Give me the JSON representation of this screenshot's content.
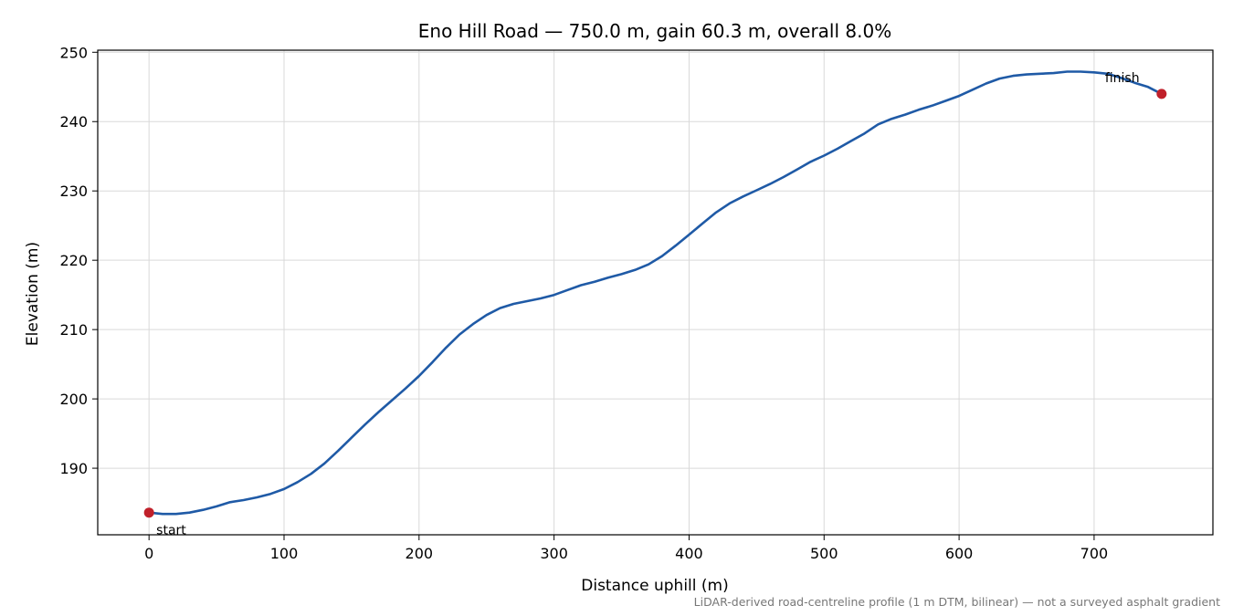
{
  "chart_data": {
    "type": "line",
    "title": "Eno Hill Road — 750.0 m, gain 60.3 m, overall 8.0%",
    "xlabel": "Distance uphill (m)",
    "ylabel": "Elevation (m)",
    "xlim": [
      -38,
      788
    ],
    "ylim": [
      180.4,
      250.3
    ],
    "xticks": [
      0,
      100,
      200,
      300,
      400,
      500,
      600,
      700
    ],
    "yticks": [
      190,
      200,
      210,
      220,
      230,
      240,
      250
    ],
    "grid": true,
    "footnote": "LiDAR-derived road-centreline profile (1 m DTM, bilinear) — not a surveyed asphalt gradient",
    "line_color": "#1f5aa6",
    "marker_color": "#c0202a",
    "series": [
      {
        "x": [
          0,
          10,
          20,
          30,
          40,
          50,
          60,
          70,
          80,
          90,
          100,
          110,
          120,
          130,
          140,
          150,
          160,
          170,
          180,
          190,
          200,
          210,
          220,
          230,
          240,
          250,
          260,
          270,
          280,
          290,
          300,
          310,
          320,
          330,
          340,
          350,
          360,
          370,
          380,
          390,
          400,
          410,
          420,
          430,
          440,
          450,
          460,
          470,
          480,
          490,
          500,
          510,
          520,
          530,
          540,
          550,
          560,
          570,
          580,
          590,
          600,
          610,
          620,
          630,
          640,
          650,
          660,
          670,
          680,
          690,
          700,
          710,
          720,
          730,
          740,
          750
        ],
        "y": [
          183.6,
          183.4,
          183.4,
          183.6,
          184.0,
          184.5,
          185.1,
          185.4,
          185.8,
          186.3,
          187.0,
          188.0,
          189.2,
          190.7,
          192.5,
          194.4,
          196.3,
          198.1,
          199.8,
          201.5,
          203.3,
          205.3,
          207.4,
          209.3,
          210.8,
          212.1,
          213.1,
          213.7,
          214.1,
          214.5,
          215.0,
          215.7,
          216.4,
          216.9,
          217.5,
          218.0,
          218.6,
          219.4,
          220.6,
          222.1,
          223.7,
          225.3,
          226.9,
          228.2,
          229.2,
          230.1,
          231.0,
          232.0,
          233.1,
          234.2,
          235.1,
          236.1,
          237.2,
          238.3,
          239.6,
          240.4,
          241.0,
          241.7,
          242.3,
          243.0,
          243.7,
          244.6,
          245.5,
          246.2,
          246.6,
          246.8,
          246.9,
          247.0,
          247.2,
          247.2,
          247.1,
          246.9,
          246.3,
          245.6,
          245.0,
          244.0
        ]
      }
    ],
    "annotations": [
      {
        "text": "start",
        "x": 0,
        "y": 183.6
      },
      {
        "text": "finish",
        "x": 750,
        "y": 244.0
      }
    ]
  }
}
